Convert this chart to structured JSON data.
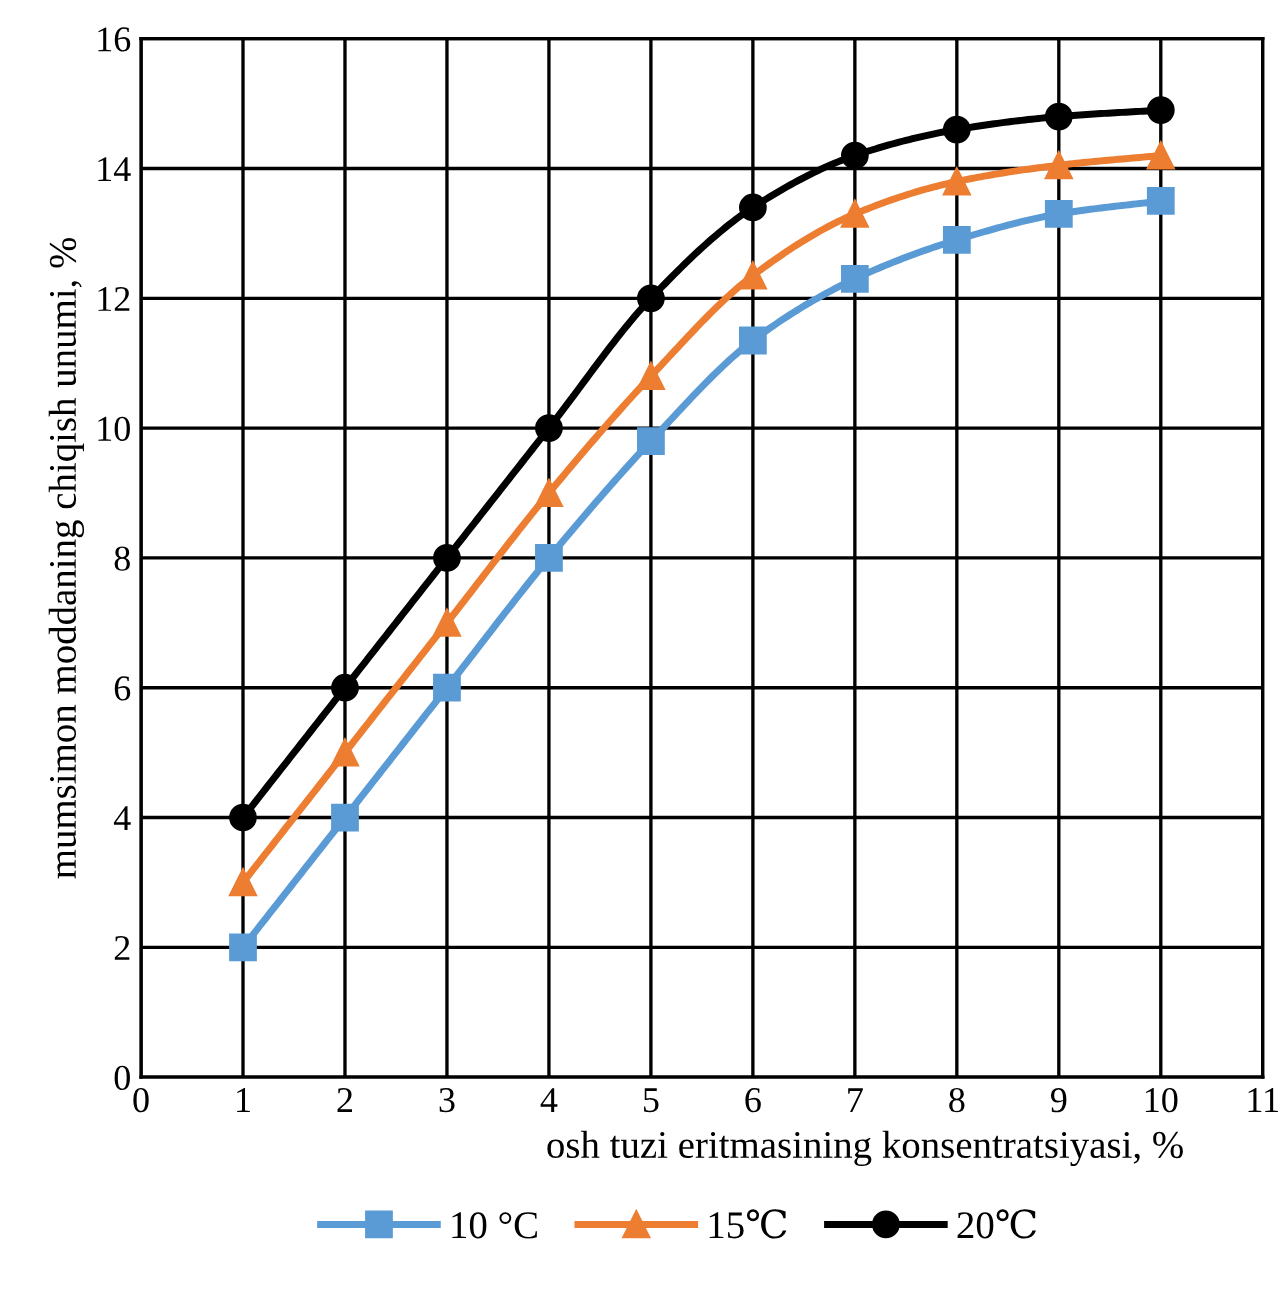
{
  "chart_data": {
    "type": "line",
    "xlabel": "osh tuzi eritmasining konsentratsiyasi, %",
    "ylabel": "mumsimon moddaning chiqish unumi, %",
    "x": [
      1,
      2,
      3,
      4,
      5,
      6,
      7,
      8,
      9,
      10
    ],
    "series": [
      {
        "name": "10 °C",
        "color": "#5b9bd5",
        "marker": "square",
        "values": [
          2,
          4,
          6,
          8,
          9.8,
          11.35,
          12.3,
          12.9,
          13.3,
          13.5
        ]
      },
      {
        "name": "15℃",
        "color": "#ed7d31",
        "marker": "triangle",
        "values": [
          3,
          5,
          7,
          9,
          10.8,
          12.35,
          13.3,
          13.8,
          14.05,
          14.2
        ]
      },
      {
        "name": "20℃",
        "color": "#000000",
        "marker": "circle",
        "values": [
          4,
          6,
          8,
          10,
          12,
          13.4,
          14.2,
          14.6,
          14.8,
          14.9
        ]
      }
    ],
    "xlim": [
      0,
      11
    ],
    "xticks": [
      0,
      1,
      2,
      3,
      4,
      5,
      6,
      7,
      8,
      9,
      10,
      11
    ],
    "ylim": [
      0,
      16
    ],
    "yticks": [
      0,
      2,
      4,
      6,
      8,
      10,
      12,
      14,
      16
    ],
    "grid": true,
    "legend": "bottom",
    "line_style": "solid"
  }
}
